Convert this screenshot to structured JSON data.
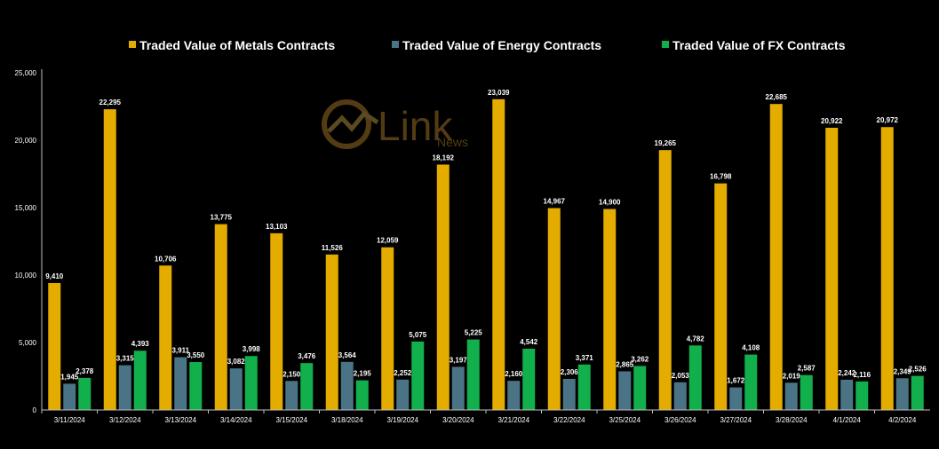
{
  "chart_data": {
    "type": "bar",
    "categories": [
      "3/11/2024",
      "3/12/2024",
      "3/13/2024",
      "3/14/2024",
      "3/15/2024",
      "3/18/2024",
      "3/19/2024",
      "3/20/2024",
      "3/21/2024",
      "3/22/2024",
      "3/25/2024",
      "3/26/2024",
      "3/27/2024",
      "3/28/2024",
      "4/1/2024",
      "4/2/2024"
    ],
    "series": [
      {
        "name": "Traded Value of Metals Contracts",
        "color": "#e5ac00",
        "values": [
          9410,
          22295,
          10706,
          13775,
          13103,
          11526,
          12059,
          18192,
          23039,
          14967,
          14900,
          19265,
          16798,
          22685,
          20922,
          20972
        ]
      },
      {
        "name": "Traded Value of Energy Contracts",
        "color": "#4a7385",
        "values": [
          1945,
          3315,
          3911,
          3082,
          2150,
          3564,
          2252,
          3197,
          2160,
          2306,
          2865,
          2053,
          1672,
          2019,
          2242,
          2349
        ]
      },
      {
        "name": "Traded Value of FX Contracts",
        "color": "#12b04c",
        "values": [
          2378,
          4393,
          3550,
          3998,
          3476,
          2195,
          5075,
          5225,
          4542,
          3371,
          3262,
          4782,
          4108,
          2587,
          2116,
          2526
        ]
      }
    ],
    "ylim": [
      0,
      25000
    ],
    "yticks": [
      0,
      5000,
      10000,
      15000,
      20000,
      25000
    ],
    "ytick_labels": [
      "0",
      "5,000",
      "10,000",
      "15,000",
      "20,000",
      "25,000"
    ],
    "legend_position": "top",
    "grid": false
  },
  "watermark": {
    "text": "Link",
    "subtext": "News"
  }
}
